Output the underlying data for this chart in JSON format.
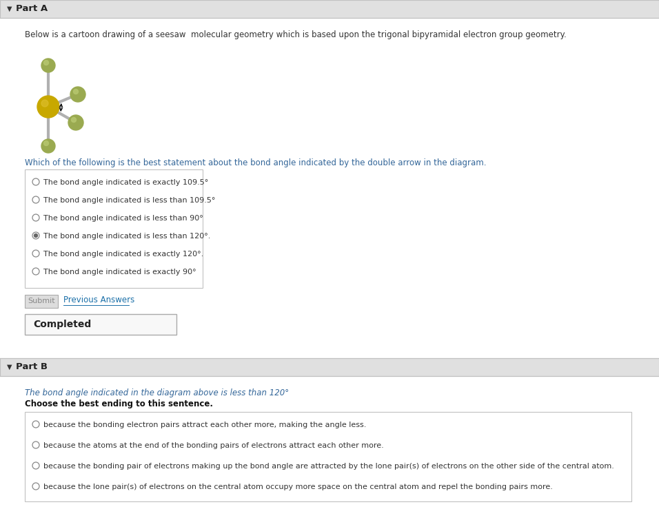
{
  "title_partA": "Part A",
  "title_partB": "Part B",
  "desc_partA": "Below is a cartoon drawing of a seesaw  molecular geometry which is based upon the trigonal bipyramidal electron group geometry.",
  "question_partA": "Which of the following is the best statement about the bond angle indicated by the double arrow in the diagram.",
  "options_partA": [
    "The bond angle indicated is exactly 109.5°",
    "The bond angle indicated is less than 109.5°",
    "The bond angle indicated is less than 90°",
    "The bond angle indicated is less than 120°.",
    "The bond angle indicated is exactly 120°.",
    "The bond angle indicated is exactly 90°"
  ],
  "selected_partA": 3,
  "submit_label": "Submit",
  "previous_answers_label": "Previous Answers",
  "completed_label": "Completed",
  "desc_partB": "The bond angle indicated in the diagram above is less than 120°",
  "choose_label": "Choose the best ending to this sentence.",
  "options_partB": [
    "because the bonding electron pairs attract each other more, making the angle less.",
    "because the atoms at the end of the bonding pairs of electrons attract each other more.",
    "because the bonding pair of electrons making up the bond angle are attracted by the lone pair(s) of electrons on the other side of the central atom.",
    "because the lone pair(s) of electrons on the central atom occupy more space on the central atom and repel the bonding pairs more."
  ],
  "bg_color": "#f0f0f0",
  "white": "#ffffff",
  "header_bg": "#e0e0e0",
  "border_color": "#c0c0c0",
  "text_color": "#333333",
  "link_color": "#1a6fa8",
  "atom_central_color": "#c8a800",
  "atom_outer_color": "#9aaa50",
  "atom_outer_light": "#b8c870",
  "bond_color": "#b0b0b0",
  "completed_border": "#aaaaaa",
  "partB_title_color": "#336699",
  "question_color": "#336699",
  "radio_outer": "#888888",
  "radio_fill": "#666666",
  "submit_bg": "#dddddd",
  "submit_text": "#888888",
  "completed_bg": "#f8f8f8"
}
